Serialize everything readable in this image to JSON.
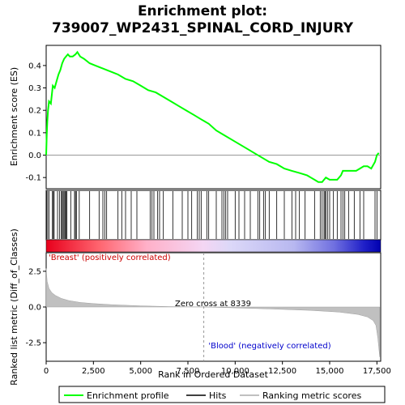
{
  "chart_data": {
    "type": "line",
    "title_line1": "Enrichment plot:",
    "title_line2": "739007_WP2431_SPINAL_CORD_INJURY",
    "top_panel": {
      "ylabel": "Enrichment score (ES)",
      "ylim": [
        -0.15,
        0.49
      ],
      "yticks": [
        -0.1,
        0.0,
        0.1,
        0.2,
        0.3,
        0.4
      ],
      "ytick_labels": [
        "-0.1",
        "0.0",
        "0.1",
        "0.2",
        "0.3",
        "0.4"
      ],
      "series": {
        "name": "Enrichment profile",
        "color": "#00ff00",
        "x": [
          0,
          30,
          60,
          100,
          150,
          250,
          350,
          450,
          550,
          650,
          750,
          850,
          950,
          1050,
          1150,
          1250,
          1400,
          1550,
          1650,
          1800,
          2000,
          2300,
          2600,
          2900,
          3200,
          3500,
          3800,
          4200,
          4600,
          5000,
          5400,
          5800,
          6200,
          6600,
          7000,
          7400,
          7800,
          8200,
          8600,
          9000,
          9400,
          9800,
          10200,
          10600,
          11000,
          11400,
          11800,
          12200,
          12600,
          13000,
          13400,
          13800,
          14000,
          14200,
          14400,
          14600,
          14700,
          14800,
          15000,
          15200,
          15400,
          15600,
          15700,
          15800,
          16000,
          16200,
          16400,
          16600,
          16800,
          17000,
          17200,
          17400,
          17500,
          17600
        ],
        "y": [
          0.0,
          0.09,
          0.15,
          0.2,
          0.24,
          0.23,
          0.31,
          0.3,
          0.33,
          0.36,
          0.38,
          0.41,
          0.43,
          0.44,
          0.45,
          0.44,
          0.44,
          0.45,
          0.46,
          0.44,
          0.43,
          0.41,
          0.4,
          0.39,
          0.38,
          0.37,
          0.36,
          0.34,
          0.33,
          0.31,
          0.29,
          0.28,
          0.26,
          0.24,
          0.22,
          0.2,
          0.18,
          0.16,
          0.14,
          0.11,
          0.09,
          0.07,
          0.05,
          0.03,
          0.01,
          -0.01,
          -0.03,
          -0.04,
          -0.06,
          -0.07,
          -0.08,
          -0.09,
          -0.1,
          -0.11,
          -0.12,
          -0.12,
          -0.11,
          -0.1,
          -0.11,
          -0.11,
          -0.11,
          -0.09,
          -0.07,
          -0.07,
          -0.07,
          -0.07,
          -0.07,
          -0.06,
          -0.05,
          -0.05,
          -0.06,
          -0.03,
          0.0,
          0.01
        ]
      }
    },
    "hits": [
      20,
      80,
      150,
      330,
      380,
      420,
      600,
      700,
      800,
      850,
      900,
      950,
      1000,
      1050,
      1100,
      1300,
      1500,
      1550,
      1600,
      1750,
      2300,
      2800,
      3000,
      3100,
      3200,
      3800,
      4000,
      4200,
      4500,
      4800,
      5500,
      5600,
      5700,
      5900,
      6000,
      6200,
      6700,
      7200,
      7500,
      7700,
      8000,
      8100,
      8200,
      8500,
      8600,
      9000,
      9300,
      9400,
      9500,
      9600,
      10000,
      10200,
      10500,
      10800,
      11200,
      11300,
      11500,
      11600,
      11800,
      12200,
      12600,
      13000,
      13200,
      13400,
      13700,
      14200,
      14500,
      14600,
      14700,
      14750,
      14800,
      14900,
      15000,
      15200,
      15400,
      15600,
      15700,
      15800,
      16000,
      16300,
      16600,
      16800,
      17400,
      17500
    ],
    "bottom_panel": {
      "ylabel": "Ranked list metric (Diff_of_Classes)",
      "xlabel": "Rank in Ordered Dataset",
      "ylim": [
        -3.8,
        3.8
      ],
      "yticks": [
        -2.5,
        0.0,
        2.5
      ],
      "ytick_labels": [
        "-2.5",
        "0.0",
        "2.5"
      ],
      "xlim": [
        0,
        17700
      ],
      "xticks": [
        0,
        2500,
        5000,
        7500,
        10000,
        12500,
        15000,
        17500
      ],
      "xtick_labels": [
        "0",
        "2,500",
        "5,000",
        "7,500",
        "10,000",
        "12,500",
        "15,000",
        "17,500"
      ],
      "metric_curve": {
        "x": [
          0,
          50,
          150,
          300,
          500,
          800,
          1200,
          1800,
          2500,
          3500,
          5000,
          6500,
          8339,
          10000,
          12000,
          14000,
          15500,
          16500,
          17000,
          17300,
          17450,
          17550,
          17650
        ],
        "y": [
          2.7,
          1.8,
          1.3,
          1.0,
          0.8,
          0.6,
          0.45,
          0.32,
          0.24,
          0.16,
          0.08,
          0.03,
          0.0,
          -0.06,
          -0.14,
          -0.24,
          -0.36,
          -0.52,
          -0.7,
          -0.95,
          -1.3,
          -2.2,
          -3.5
        ]
      }
    },
    "annotations": {
      "positive": "'Breast' (positively correlated)",
      "negative": "'Blood' (negatively correlated)",
      "zero_cross": "Zero cross at 8339",
      "zero_cross_x": 8339
    },
    "legend": {
      "enrichment": "Enrichment profile",
      "hits": "Hits",
      "ranking": "Ranking metric scores"
    },
    "colors": {
      "enrichment": "#00ff00",
      "hits": "#000000",
      "positive_text": "#cc0000",
      "negative_text": "#0000cc",
      "metric_fill": "#c0c0c0"
    }
  }
}
